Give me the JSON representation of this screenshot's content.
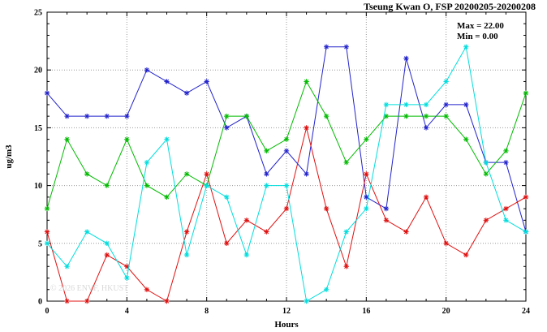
{
  "title": "Tseung Kwan O, FSP 20200205-20200208",
  "annotations": {
    "max_label": "Max = 22.00",
    "min_label": "Min =  0.00"
  },
  "watermark": "© 2026 ENVF, HKUST",
  "chart_data": {
    "type": "line",
    "title": "Tseung Kwan O, FSP 20200205-20200208",
    "xlabel": "Hours",
    "ylabel": "ug/m3",
    "xlim": [
      0,
      24
    ],
    "ylim": [
      0,
      25
    ],
    "x_major_ticks": [
      0,
      4,
      8,
      12,
      16,
      20,
      24
    ],
    "y_major_ticks": [
      0,
      5,
      10,
      15,
      20,
      25
    ],
    "grid": "dotted",
    "legend_position": "none",
    "marker": "asterisk",
    "x": [
      0,
      1,
      2,
      3,
      4,
      5,
      6,
      7,
      8,
      9,
      10,
      11,
      12,
      13,
      14,
      15,
      16,
      17,
      18,
      19,
      20,
      21,
      22,
      23,
      24
    ],
    "series": [
      {
        "name": "series-blue",
        "color": "#2222cc",
        "values": [
          18,
          16,
          16,
          16,
          16,
          20,
          19,
          18,
          19,
          15,
          16,
          11,
          13,
          11,
          22,
          22,
          9,
          8,
          21,
          15,
          17,
          17,
          12,
          12,
          6
        ]
      },
      {
        "name": "series-red",
        "color": "#e01010",
        "values": [
          6,
          0,
          0,
          4,
          3,
          1,
          0,
          6,
          11,
          5,
          7,
          6,
          8,
          15,
          8,
          3,
          11,
          7,
          6,
          9,
          5,
          4,
          7,
          8,
          9
        ]
      },
      {
        "name": "series-green",
        "color": "#00bb00",
        "values": [
          8,
          14,
          11,
          10,
          14,
          10,
          9,
          11,
          10,
          16,
          16,
          13,
          14,
          19,
          16,
          12,
          14,
          16,
          16,
          16,
          16,
          14,
          11,
          13,
          18
        ]
      },
      {
        "name": "series-cyan",
        "color": "#00dddd",
        "values": [
          5,
          3,
          6,
          5,
          2,
          12,
          14,
          4,
          10,
          9,
          4,
          10,
          10,
          0,
          1,
          6,
          8,
          17,
          17,
          17,
          19,
          22,
          12,
          7,
          6
        ]
      }
    ]
  }
}
